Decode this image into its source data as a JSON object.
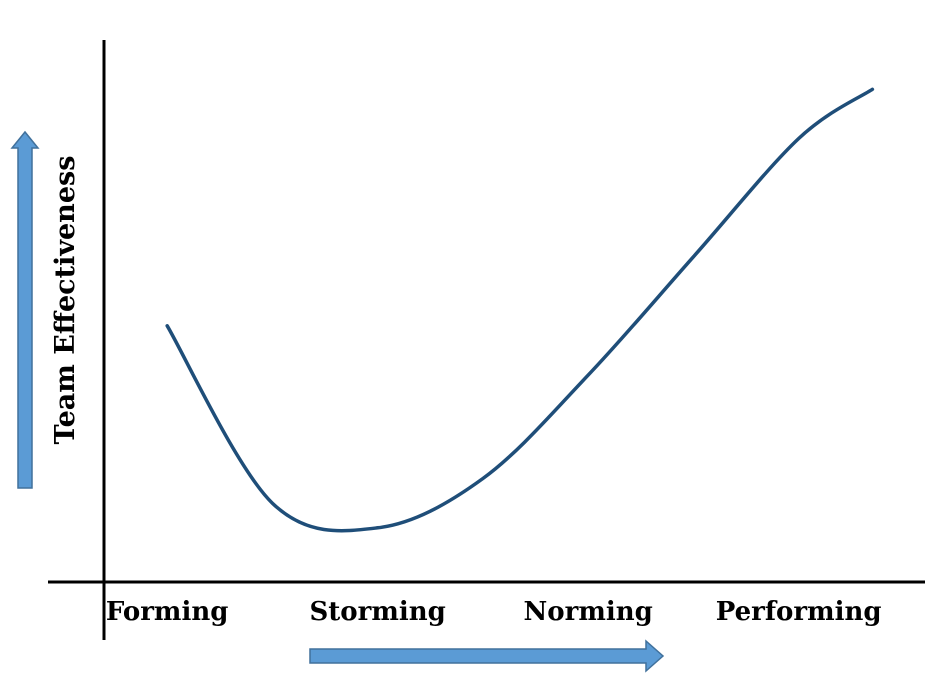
{
  "chart_data": {
    "type": "line",
    "categories": [
      "Forming",
      "Storming",
      "Norming",
      "Performing"
    ],
    "x": [
      0.0,
      0.5,
      1.0,
      1.5,
      2.0,
      2.5,
      3.0,
      3.35
    ],
    "series": [
      {
        "values": [
          0.52,
          0.16,
          0.11,
          0.21,
          0.42,
          0.66,
          0.9,
          1.0
        ]
      }
    ],
    "xlabel": "",
    "ylabel": "Team Effectiveness",
    "xlim": [
      -0.3,
      3.6
    ],
    "ylim": [
      0.0,
      1.1
    ],
    "grid": false,
    "legend": "none",
    "colors": {
      "line": "#1f4e79",
      "arrow": "#5b9bd5",
      "arrow_border": "#41719c",
      "axis": "#000000"
    }
  }
}
